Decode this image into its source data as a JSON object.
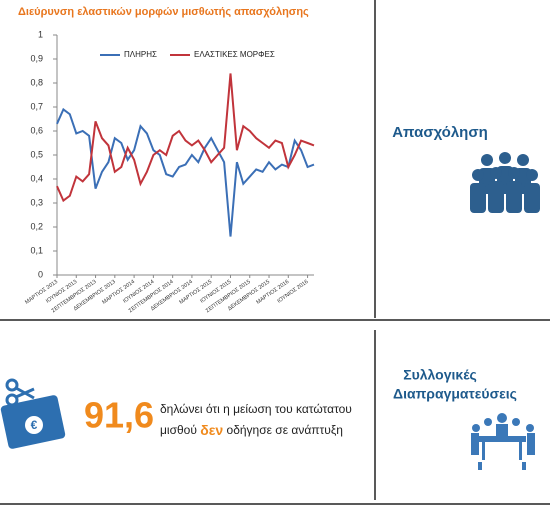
{
  "chart_data": {
    "type": "line",
    "title": "Διεύρυνση ελαστικών μορφών μισθωτής απασχόλησης",
    "categories": [
      "ΜΑΡΤΙΟΣ 2013",
      null,
      null,
      "ΙΟΥΝΙΟΣ 2013",
      null,
      null,
      "ΣΕΠΤΕΜΒΡΙΟΣ 2013",
      null,
      null,
      "ΔΕΚΕΜΒΡΙΟΣ 2013",
      null,
      null,
      "ΜΑΡΤΙΟΣ 2014",
      null,
      null,
      "ΙΟΥΝΙΟΣ 2014",
      null,
      null,
      "ΣΕΠΤΕΜΒΡΙΟΣ 2014",
      null,
      null,
      "ΔΕΚΕΜΒΡΙΟΣ 2014",
      null,
      null,
      "ΜΑΡΤΙΟΣ 2015",
      null,
      null,
      "ΙΟΥΝΙΟΣ 2015",
      null,
      null,
      "ΣΕΠΤΕΜΒΡΙΟΣ 2015",
      null,
      null,
      "ΔΕΚΕΜΒΡΙΟΣ 2015",
      null,
      null,
      "ΜΑΡΤΙΟΣ 2016",
      null,
      null,
      "ΙΟΥΝΙΟΣ 2016",
      null
    ],
    "series": [
      {
        "name": "ΠΛΗΡΗΣ",
        "color": "#3b6fb6",
        "values": [
          0.63,
          0.69,
          0.67,
          0.59,
          0.6,
          0.58,
          0.36,
          0.43,
          0.47,
          0.57,
          0.55,
          0.48,
          0.52,
          0.62,
          0.59,
          0.52,
          0.5,
          0.42,
          0.41,
          0.45,
          0.46,
          0.5,
          0.47,
          0.53,
          0.57,
          0.52,
          0.47,
          0.16,
          0.47,
          0.38,
          0.41,
          0.44,
          0.43,
          0.47,
          0.44,
          0.46,
          0.45,
          0.56,
          0.52,
          0.45,
          0.46
        ]
      },
      {
        "name": "ΕΛΑΣΤΙΚΕΣ ΜΟΡΦΕΣ",
        "color": "#c1343b",
        "values": [
          0.37,
          0.31,
          0.33,
          0.41,
          0.39,
          0.42,
          0.64,
          0.57,
          0.54,
          0.43,
          0.45,
          0.53,
          0.48,
          0.38,
          0.43,
          0.5,
          0.52,
          0.5,
          0.58,
          0.6,
          0.56,
          0.54,
          0.56,
          0.52,
          0.47,
          0.5,
          0.53,
          0.84,
          0.52,
          0.62,
          0.6,
          0.57,
          0.55,
          0.53,
          0.56,
          0.55,
          0.45,
          0.5,
          0.56,
          0.55,
          0.54
        ]
      }
    ],
    "ylim": [
      0,
      1
    ],
    "yticks": [
      0,
      {
        "value": 0.1,
        "label": "0,1"
      },
      {
        "value": 0.2,
        "label": "0,2"
      },
      {
        "value": 0.3,
        "label": "0,3"
      },
      {
        "value": 0.4,
        "label": "0,4"
      },
      {
        "value": 0.5,
        "label": "0,5"
      },
      {
        "value": 0.6,
        "label": "0,6"
      },
      {
        "value": 0.7,
        "label": "0,7"
      },
      {
        "value": 0.8,
        "label": "0,8"
      },
      {
        "value": 0.9,
        "label": "0,9"
      },
      1
    ],
    "legend": "top"
  },
  "panels": {
    "employment": "Απασχόληση",
    "stat_value": "91,6",
    "stat_text_1": "δηλώνει ότι η μείωση του κατώτατου",
    "stat_text_2": "μισθού",
    "stat_emph": "δεν",
    "stat_text_3": "οδήγησε σε ανάπτυξη",
    "collective_1": "Συλλογικές",
    "collective_2": "Διαπραγματεύσεις"
  }
}
